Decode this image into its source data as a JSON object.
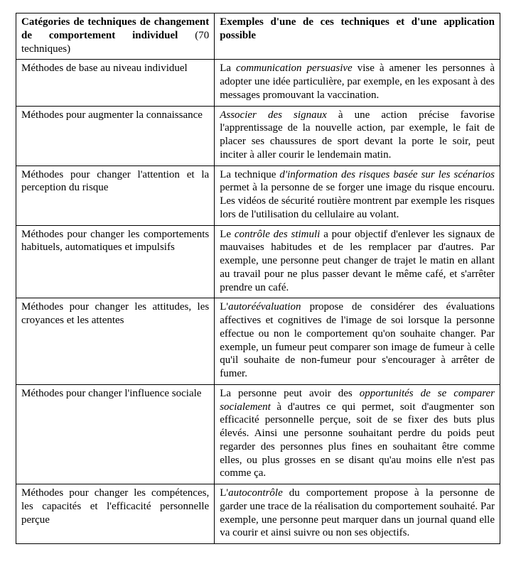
{
  "table": {
    "header": {
      "left_bold": "Catégories de techniques de changement de comportement individuel",
      "left_normal": " (70 techniques)",
      "right_bold": "Exemples d'une de ces techniques et d'une application possible"
    },
    "rows": [
      {
        "left": "Méthodes de base au niveau individuel",
        "right_pre": "La ",
        "right_italic": "communication persuasive",
        "right_post": " vise à amener les personnes à adopter une idée particulière, par exemple, en les exposant à des messages promouvant la vaccination."
      },
      {
        "left": "Méthodes pour augmenter la connaissance",
        "right_pre": "",
        "right_italic": "Associer des signaux",
        "right_post": " à une action précise favorise l'apprentissage de la nouvelle action, par exemple, le fait de placer ses chaussures de sport devant la porte le soir, peut inciter à aller courir le lendemain matin."
      },
      {
        "left": "Méthodes pour changer l'attention et la perception du risque",
        "right_pre": "La technique ",
        "right_italic": "d'information des risques basée sur les scénarios",
        "right_post": " permet à la personne de se forger une image du risque encouru. Les vidéos de sécurité routière montrent par exemple les risques lors de l'utilisation du cellulaire au volant."
      },
      {
        "left": "Méthodes pour changer les comportements habituels, automatiques et impulsifs",
        "right_pre": "Le ",
        "right_italic": "contrôle des stimuli",
        "right_post": " a pour objectif d'enlever les signaux de mauvaises habitudes et de les remplacer par d'autres. Par exemple, une personne peut changer de trajet le matin en allant au travail pour ne plus passer devant le même café, et s'arrêter prendre un café."
      },
      {
        "left": "Méthodes pour changer les attitudes, les croyances et les attentes",
        "right_pre": "L'",
        "right_italic": "autoréévaluation",
        "right_post": " propose de considérer des évaluations affectives et cognitives de l'image de soi lorsque la personne effectue ou non le comportement qu'on souhaite changer. Par exemple, un fumeur peut comparer son image de fumeur à celle qu'il souhaite de non-fumeur pour s'encourager à arrêter de fumer."
      },
      {
        "left": "Méthodes pour changer l'influence sociale",
        "right_pre": "La personne peut avoir des ",
        "right_italic": "opportunités de se comparer socialement",
        "right_post": " à d'autres ce qui permet, soit d'augmenter son efficacité personnelle perçue, soit de se fixer des buts plus élevés. Ainsi une personne souhaitant perdre du poids peut regarder des personnes plus fines en souhaitant être comme elles, ou plus grosses en se disant qu'au moins elle n'est pas comme ça."
      },
      {
        "left": "Méthodes pour changer les compétences, les capacités et l'efficacité personnelle perçue",
        "right_pre": "L'",
        "right_italic": "autocontrôle",
        "right_post": " du comportement propose à la personne de garder une trace de la réalisation du comportement souhaité. Par exemple, une personne peut marquer dans un journal quand elle va courir et ainsi suivre ou non ses objectifs."
      }
    ]
  }
}
